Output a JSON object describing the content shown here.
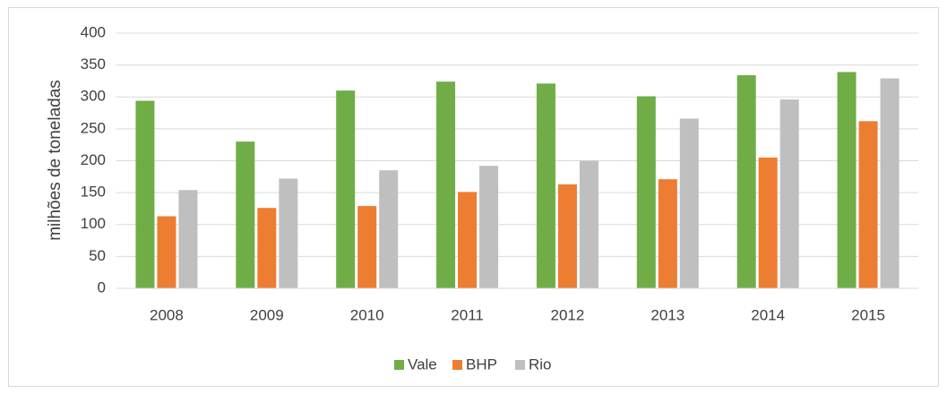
{
  "chart_data": {
    "type": "bar",
    "y_label": "milhões de toneladas",
    "categories": [
      "2008",
      "2009",
      "2010",
      "2011",
      "2012",
      "2013",
      "2014",
      "2015"
    ],
    "series": [
      {
        "name": "Vale",
        "color": "#70ad47",
        "values": [
          294,
          230,
          310,
          324,
          321,
          301,
          334,
          339
        ]
      },
      {
        "name": "BHP",
        "color": "#ed7d31",
        "values": [
          113,
          126,
          129,
          151,
          163,
          171,
          205,
          262
        ]
      },
      {
        "name": "Rio",
        "color": "#bfbfbf",
        "values": [
          154,
          172,
          185,
          192,
          200,
          266,
          296,
          329
        ]
      }
    ],
    "ylim": [
      0,
      400
    ],
    "yticks": [
      0,
      50,
      100,
      150,
      200,
      250,
      300,
      350,
      400
    ],
    "grid": true,
    "legend": "bottom"
  }
}
